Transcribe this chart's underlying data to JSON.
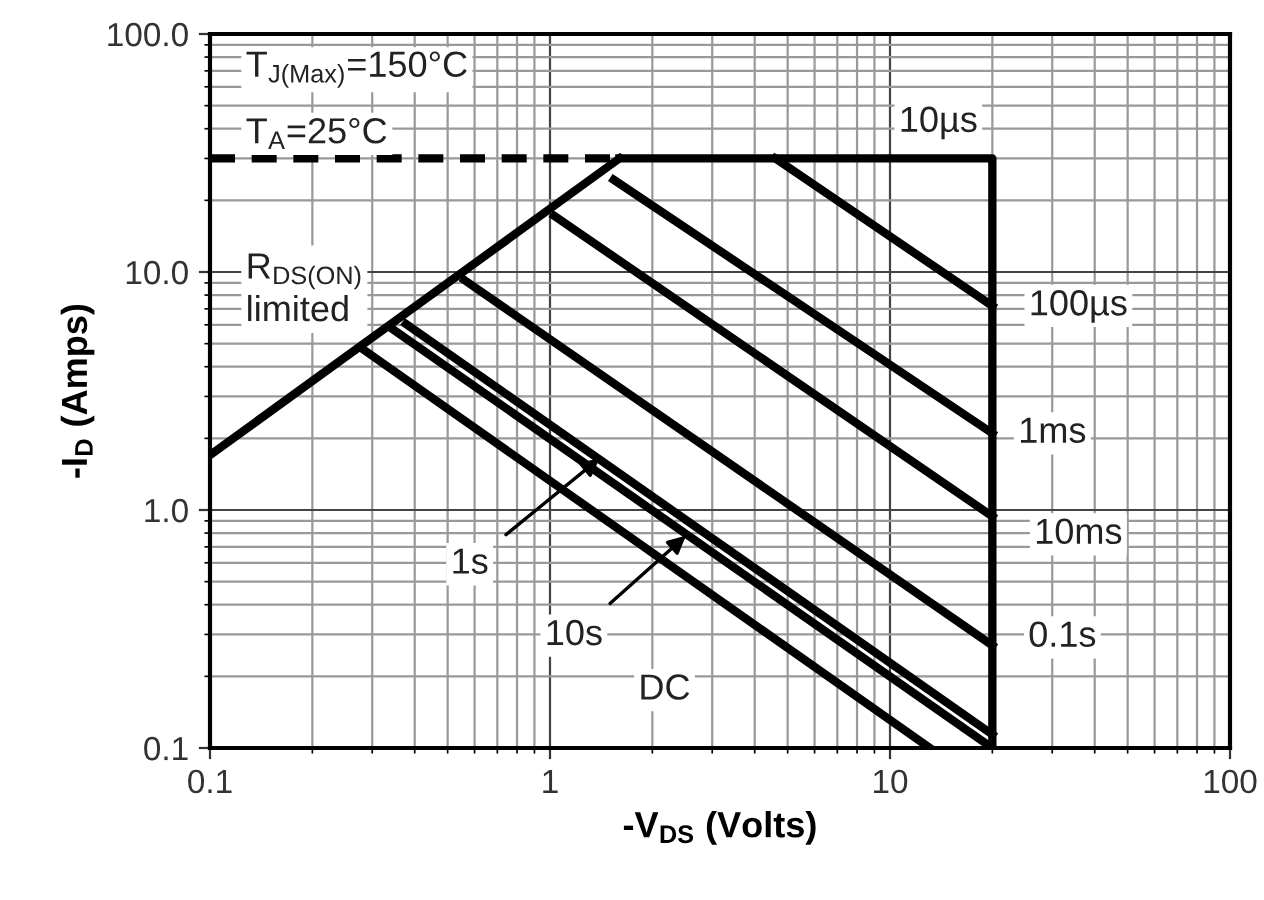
{
  "chart_data": {
    "type": "line",
    "xlabel": "-V$_{DS}$ (Volts)",
    "ylabel": "-I$_{D}$ (Amps)",
    "log": "xy",
    "grid": true,
    "marker": "none",
    "line_style": "solid",
    "color": "#000000",
    "xlim": [
      0.1,
      100
    ],
    "ylim": [
      0.1,
      100
    ],
    "xticks": [
      0.1,
      1,
      10,
      100
    ],
    "yticks": [
      {
        "value": 0.1,
        "label": "0.1"
      },
      {
        "value": 1,
        "label": "1.0"
      },
      {
        "value": 10,
        "label": "10.0"
      },
      {
        "value": 100,
        "label": "100.0"
      }
    ],
    "series": [
      {
        "x": [
          0.1,
          1.6
        ],
        "values": [
          1.7,
          30
        ]
      },
      {
        "x": [
          0.1,
          1.6
        ],
        "values": [
          30,
          30
        ],
        "line_style": "dashed"
      },
      {
        "x": [
          1.6,
          20,
          20
        ],
        "values": [
          30,
          30,
          0.1
        ]
      },
      {
        "x": [
          4.6,
          20
        ],
        "values": [
          30,
          7.2
        ]
      },
      {
        "x": [
          1.54,
          20
        ],
        "values": [
          24.4,
          2.1
        ]
      },
      {
        "x": [
          1.03,
          20
        ],
        "values": [
          17.2,
          0.94
        ]
      },
      {
        "x": [
          0.56,
          20
        ],
        "values": [
          9.25,
          0.27
        ]
      },
      {
        "x": [
          0.377,
          20
        ],
        "values": [
          6.05,
          0.114
        ]
      },
      {
        "x": [
          0.348,
          20
        ],
        "values": [
          5.7,
          0.1
        ]
      },
      {
        "x": [
          0.284,
          13.1
        ],
        "values": [
          4.7,
          0.1
        ]
      }
    ],
    "annotations": [
      "T$_{J(Max)}$=150°C",
      "T$_{A}$=25°C",
      "R$_{DS(ON)}$\nlimited",
      {
        "text": "10µs",
        "x": 20,
        "y": 30
      },
      {
        "text": "100µs",
        "x": 20,
        "y": 7.2
      },
      {
        "text": "1ms",
        "x": 20,
        "y": 2.1
      },
      {
        "text": "10ms",
        "x": 20,
        "y": 0.94
      },
      {
        "text": "0.1s",
        "x": 20,
        "y": 0.27
      },
      {
        "text": "1s",
        "x": 1.4,
        "y": 1.65
      },
      {
        "text": "10s",
        "x": 2.51,
        "y": 0.78
      },
      "DC"
    ]
  }
}
